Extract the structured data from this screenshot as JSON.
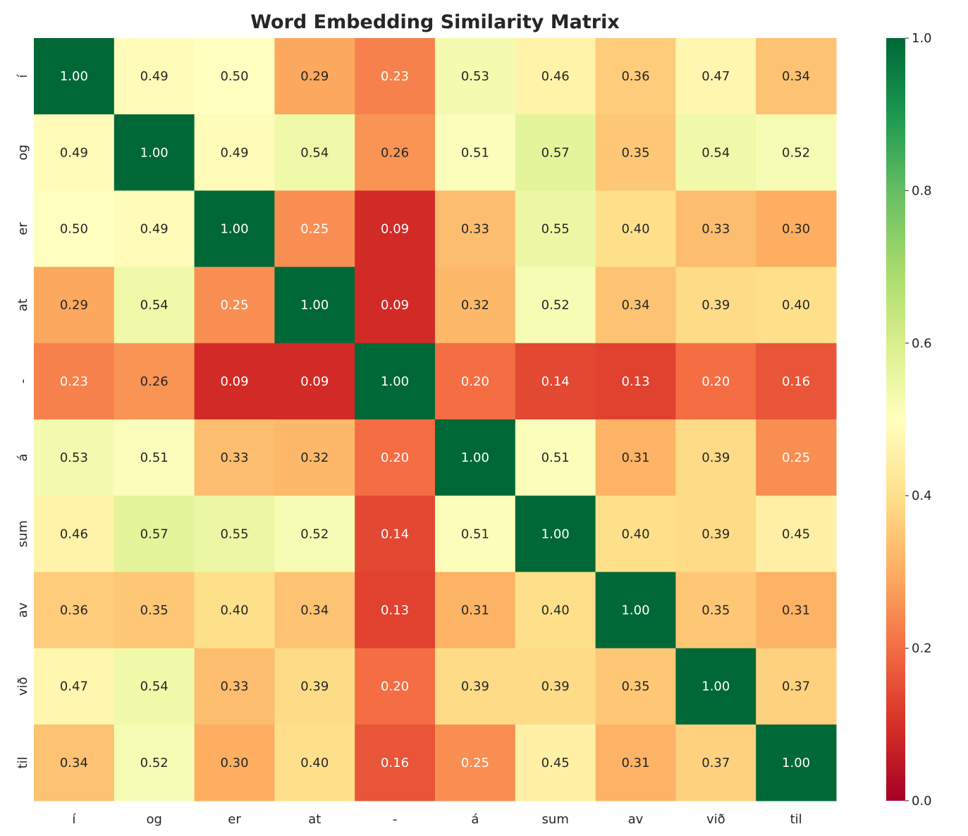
{
  "chart_data": {
    "type": "heatmap",
    "title": "Word Embedding Similarity Matrix",
    "xlabel": "",
    "ylabel": "",
    "x_labels": [
      "í",
      "og",
      "er",
      "at",
      "-",
      "á",
      "sum",
      "av",
      "við",
      "til"
    ],
    "y_labels": [
      "í",
      "og",
      "er",
      "at",
      "-",
      "á",
      "sum",
      "av",
      "við",
      "til"
    ],
    "values": [
      [
        1.0,
        0.49,
        0.5,
        0.29,
        0.23,
        0.53,
        0.46,
        0.36,
        0.47,
        0.34
      ],
      [
        0.49,
        1.0,
        0.49,
        0.54,
        0.26,
        0.51,
        0.57,
        0.35,
        0.54,
        0.52
      ],
      [
        0.5,
        0.49,
        1.0,
        0.25,
        0.09,
        0.33,
        0.55,
        0.4,
        0.33,
        0.3
      ],
      [
        0.29,
        0.54,
        0.25,
        1.0,
        0.09,
        0.32,
        0.52,
        0.34,
        0.39,
        0.4
      ],
      [
        0.23,
        0.26,
        0.09,
        0.09,
        1.0,
        0.2,
        0.14,
        0.13,
        0.2,
        0.16
      ],
      [
        0.53,
        0.51,
        0.33,
        0.32,
        0.2,
        1.0,
        0.51,
        0.31,
        0.39,
        0.25
      ],
      [
        0.46,
        0.57,
        0.55,
        0.52,
        0.14,
        0.51,
        1.0,
        0.4,
        0.39,
        0.45
      ],
      [
        0.36,
        0.35,
        0.4,
        0.34,
        0.13,
        0.31,
        0.4,
        1.0,
        0.35,
        0.31
      ],
      [
        0.47,
        0.54,
        0.33,
        0.39,
        0.2,
        0.39,
        0.39,
        0.35,
        1.0,
        0.37
      ],
      [
        0.34,
        0.52,
        0.3,
        0.4,
        0.16,
        0.25,
        0.45,
        0.31,
        0.37,
        1.0
      ]
    ],
    "colormap": "RdYlGn",
    "vmin": 0.0,
    "vmax": 1.0,
    "colorbar_ticks": [
      "0.0",
      "0.2",
      "0.4",
      "0.6",
      "0.8",
      "1.0"
    ],
    "annotation_format": "0.00",
    "colormap_stops": [
      "#a50026",
      "#d73027",
      "#f46d43",
      "#fdae61",
      "#fee08b",
      "#ffffbf",
      "#d9ef8b",
      "#a6d96a",
      "#66bd63",
      "#1a9850",
      "#006837"
    ],
    "grid": false,
    "legend": "colorbar-right"
  }
}
